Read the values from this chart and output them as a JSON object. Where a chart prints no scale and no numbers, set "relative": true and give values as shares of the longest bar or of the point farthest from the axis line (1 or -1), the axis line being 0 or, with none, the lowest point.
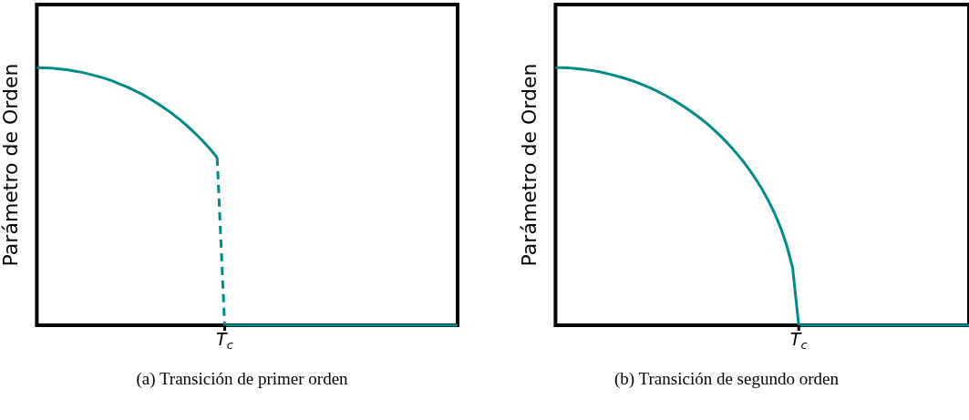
{
  "chart_data": [
    {
      "type": "line",
      "ylabel": "Parámetro de Orden",
      "relative": true,
      "annotations": [
        "(a) Transición de primer orden",
        "T$_{c}$"
      ],
      "categories": [
        null,
        null,
        null,
        null,
        null,
        null,
        null,
        null,
        null,
        null,
        null,
        null,
        null,
        null,
        null,
        null,
        null,
        null,
        null,
        null,
        null,
        null,
        null,
        null,
        null,
        null,
        null,
        null,
        null,
        null,
        null,
        null,
        null,
        null,
        null,
        null,
        null,
        null,
        null,
        null,
        null,
        null,
        null,
        null,
        null,
        null,
        null,
        null,
        null,
        null,
        null,
        null,
        null,
        null,
        null,
        null,
        null
      ],
      "series": [
        {
          "color": "#008b8b",
          "values": [
            1,
            0.999,
            0.998,
            0.995,
            0.992,
            0.987,
            0.982,
            0.975,
            0.967,
            0.959,
            0.949,
            0.937,
            0.925,
            0.911,
            0.897,
            0.88,
            0.862,
            0.843,
            0.822,
            0.799,
            0.774,
            0.747,
            0.718,
            0.686,
            0.651,
            null,
            null,
            null,
            null,
            null,
            null,
            null,
            null,
            null,
            null,
            null,
            null,
            null,
            null,
            null,
            null,
            null,
            null,
            null,
            null,
            null,
            null,
            null,
            null,
            null,
            null,
            null,
            null,
            null,
            null,
            null,
            null
          ]
        },
        {
          "color": "#008b8b",
          "line_style": "dashed",
          "values": [
            null,
            null,
            null,
            null,
            null,
            null,
            null,
            null,
            null,
            null,
            null,
            null,
            null,
            null,
            null,
            null,
            null,
            null,
            null,
            null,
            null,
            null,
            null,
            null,
            0.651,
            0,
            null,
            null,
            null,
            null,
            null,
            null,
            null,
            null,
            null,
            null,
            null,
            null,
            null,
            null,
            null,
            null,
            null,
            null,
            null,
            null,
            null,
            null,
            null,
            null,
            null,
            null,
            null,
            null,
            null,
            null,
            null
          ]
        },
        {
          "color": "#008b8b",
          "values": [
            null,
            null,
            null,
            null,
            null,
            null,
            null,
            null,
            null,
            null,
            null,
            null,
            null,
            null,
            null,
            null,
            null,
            null,
            null,
            null,
            null,
            null,
            null,
            null,
            null,
            0,
            0,
            0,
            0,
            0,
            0,
            0,
            0,
            0,
            0,
            0,
            0,
            0,
            0,
            0,
            0,
            0,
            0,
            0,
            0,
            0,
            0,
            0,
            0,
            0,
            0,
            0,
            0,
            0,
            0,
            0,
            0
          ]
        }
      ]
    },
    {
      "type": "line",
      "ylabel": "Parámetro de Orden",
      "relative": true,
      "annotations": [
        "(b) Transición de segundo orden",
        "T$_{c}$"
      ],
      "categories": [
        null,
        null,
        null,
        null,
        null,
        null,
        null,
        null,
        null,
        null,
        null,
        null,
        null,
        null,
        null,
        null,
        null,
        null,
        null,
        null,
        null,
        null,
        null,
        null,
        null,
        null,
        null,
        null,
        null,
        null,
        null,
        null,
        null,
        null,
        null,
        null,
        null,
        null,
        null,
        null,
        null,
        null,
        null,
        null,
        null,
        null,
        null,
        null,
        null,
        null,
        null,
        null,
        null,
        null,
        null,
        null,
        null,
        null,
        null,
        null,
        null,
        null,
        null,
        null,
        null,
        null,
        null,
        null,
        null
      ],
      "series": [
        {
          "color": "#008b8b",
          "values": [
            1,
            1,
            0.999,
            0.997,
            0.995,
            0.992,
            0.989,
            0.985,
            0.98,
            0.974,
            0.968,
            0.961,
            0.954,
            0.946,
            0.937,
            0.927,
            0.917,
            0.905,
            0.893,
            0.88,
            0.866,
            0.851,
            0.835,
            0.818,
            0.8,
            0.781,
            0.76,
            0.738,
            0.714,
            0.689,
            0.661,
            0.632,
            0.6,
            0.565,
            0.527,
            0.484,
            0.436,
            0.38,
            0.312,
            0.222,
            0,
            0,
            0,
            0,
            0,
            0,
            0,
            0,
            0,
            0,
            0,
            0,
            0,
            0,
            0,
            0,
            0,
            0,
            0,
            0,
            0,
            0,
            0,
            0,
            0,
            0,
            0,
            0,
            0
          ]
        }
      ]
    }
  ]
}
